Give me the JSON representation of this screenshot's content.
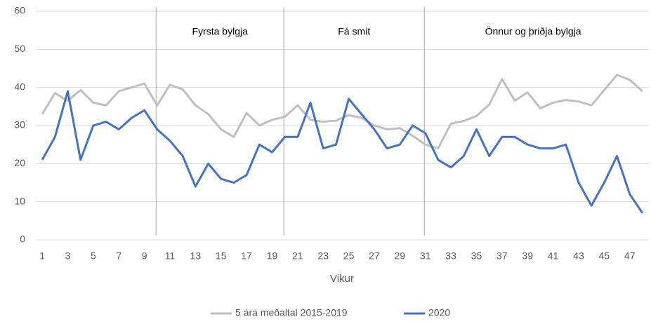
{
  "chart_data": {
    "type": "line",
    "x_label": "Vikur",
    "x": [
      1,
      2,
      3,
      4,
      5,
      6,
      7,
      8,
      9,
      10,
      11,
      12,
      13,
      14,
      15,
      16,
      17,
      18,
      19,
      20,
      21,
      22,
      23,
      24,
      25,
      26,
      27,
      28,
      29,
      30,
      31,
      32,
      33,
      34,
      35,
      36,
      37,
      38,
      39,
      40,
      41,
      42,
      43,
      44,
      45,
      46,
      47,
      48
    ],
    "xlim": [
      0.5,
      48.5
    ],
    "xticks": [
      1,
      3,
      5,
      7,
      9,
      11,
      13,
      15,
      17,
      19,
      21,
      23,
      25,
      27,
      29,
      31,
      33,
      35,
      37,
      39,
      41,
      43,
      45,
      47
    ],
    "ylim": [
      0,
      60
    ],
    "yticks": [
      0,
      10,
      20,
      30,
      40,
      50,
      60
    ],
    "grid": true,
    "legend": "bottom",
    "annotations": [
      {
        "x": 10,
        "label": "Fyrsta bylgja"
      },
      {
        "x": 20,
        "label": "Fá smit"
      },
      {
        "x": 31,
        "label": "Önnur og þriðja bylgja"
      }
    ],
    "series": [
      {
        "name": "5 ára meðaltal 2015-2019",
        "color": "#bfbfbf",
        "values": [
          33,
          38.5,
          36.5,
          39.3,
          36,
          35.3,
          39,
          40,
          41,
          35.3,
          40.7,
          39.5,
          35.3,
          33,
          29,
          27,
          33.3,
          30,
          31.5,
          32.3,
          35.3,
          31.5,
          31,
          31.3,
          32.7,
          32,
          30,
          29,
          29.3,
          27.3,
          25,
          24,
          30.5,
          31.2,
          32.5,
          35.5,
          42.2,
          36.5,
          38.7,
          34.5,
          36,
          36.7,
          36.3,
          35.3,
          39.3,
          43.3,
          42,
          39
        ]
      },
      {
        "name": "2020",
        "color": "#4472c4",
        "values": [
          21,
          27,
          39,
          21,
          30,
          31,
          29,
          32,
          34,
          29,
          26,
          22,
          14,
          20,
          16,
          15,
          17,
          25,
          23,
          27,
          27,
          36,
          24,
          25,
          37,
          33,
          29,
          24,
          25,
          30,
          28,
          21,
          19,
          22,
          29,
          22,
          27,
          27,
          25,
          24,
          24,
          25,
          15,
          9,
          15,
          22,
          12,
          7
        ]
      }
    ]
  }
}
